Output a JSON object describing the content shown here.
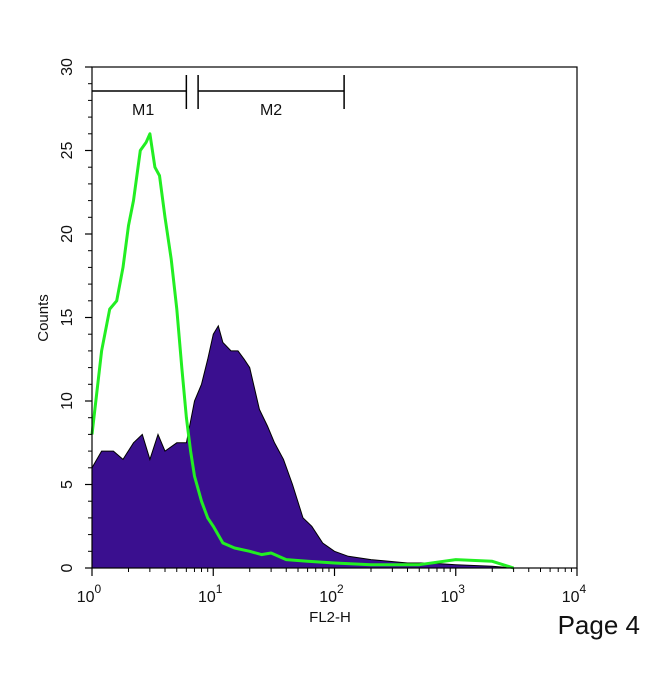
{
  "chart_data": {
    "type": "area",
    "xlabel": "FL2-H",
    "ylabel": "Counts",
    "x_scale": "log",
    "xlim": [
      1,
      10000
    ],
    "ylim": [
      0,
      30
    ],
    "x_ticks": [
      {
        "value": 1,
        "base": "10",
        "exp": "0"
      },
      {
        "value": 10,
        "base": "10",
        "exp": "1"
      },
      {
        "value": 100,
        "base": "10",
        "exp": "2"
      },
      {
        "value": 1000,
        "base": "10",
        "exp": "3"
      },
      {
        "value": 10000,
        "base": "10",
        "exp": "4"
      }
    ],
    "y_ticks": [
      "0",
      "5",
      "10",
      "15",
      "20",
      "25",
      "30"
    ],
    "markers": [
      {
        "label": "M1",
        "range": [
          1,
          6
        ]
      },
      {
        "label": "M2",
        "range": [
          7.5,
          120
        ]
      }
    ],
    "series": [
      {
        "style": "filled",
        "color": "#3a0f8f",
        "x": [
          1,
          1.2,
          1.5,
          1.8,
          2.2,
          2.6,
          3,
          3.5,
          4,
          5,
          6,
          7,
          8,
          9,
          10,
          11,
          12,
          14,
          16,
          18,
          20,
          24,
          28,
          32,
          38,
          45,
          55,
          65,
          80,
          100,
          130,
          200,
          400,
          600,
          1000,
          2000,
          3000
        ],
        "y": [
          6,
          7,
          7,
          6.5,
          7.5,
          8,
          6.5,
          8,
          7,
          7.5,
          7.5,
          10,
          11,
          12.5,
          14,
          14.5,
          13.5,
          13,
          13,
          12.5,
          12,
          9.5,
          8.5,
          7.5,
          6.5,
          5,
          3,
          2.5,
          1.5,
          1,
          0.7,
          0.5,
          0.3,
          0.3,
          0.2,
          0.1,
          0
        ]
      },
      {
        "style": "line",
        "color": "#22ee22",
        "x": [
          1,
          1.2,
          1.4,
          1.6,
          1.8,
          2,
          2.2,
          2.5,
          2.8,
          3,
          3.3,
          3.6,
          4,
          4.5,
          5,
          5.5,
          6,
          6.5,
          7,
          8,
          9,
          10,
          12,
          15,
          20,
          25,
          30,
          40,
          60,
          100,
          200,
          500,
          1000,
          2000,
          3000
        ],
        "y": [
          8,
          13,
          15.5,
          16,
          18,
          20.5,
          22,
          25,
          25.5,
          26,
          24,
          23.5,
          21,
          18.5,
          15.5,
          12,
          9,
          7,
          5.5,
          4,
          3,
          2.5,
          1.5,
          1.2,
          1,
          0.8,
          0.9,
          0.5,
          0.4,
          0.3,
          0.2,
          0.2,
          0.5,
          0.4,
          0
        ]
      }
    ]
  },
  "page": {
    "label": "Page 4"
  }
}
